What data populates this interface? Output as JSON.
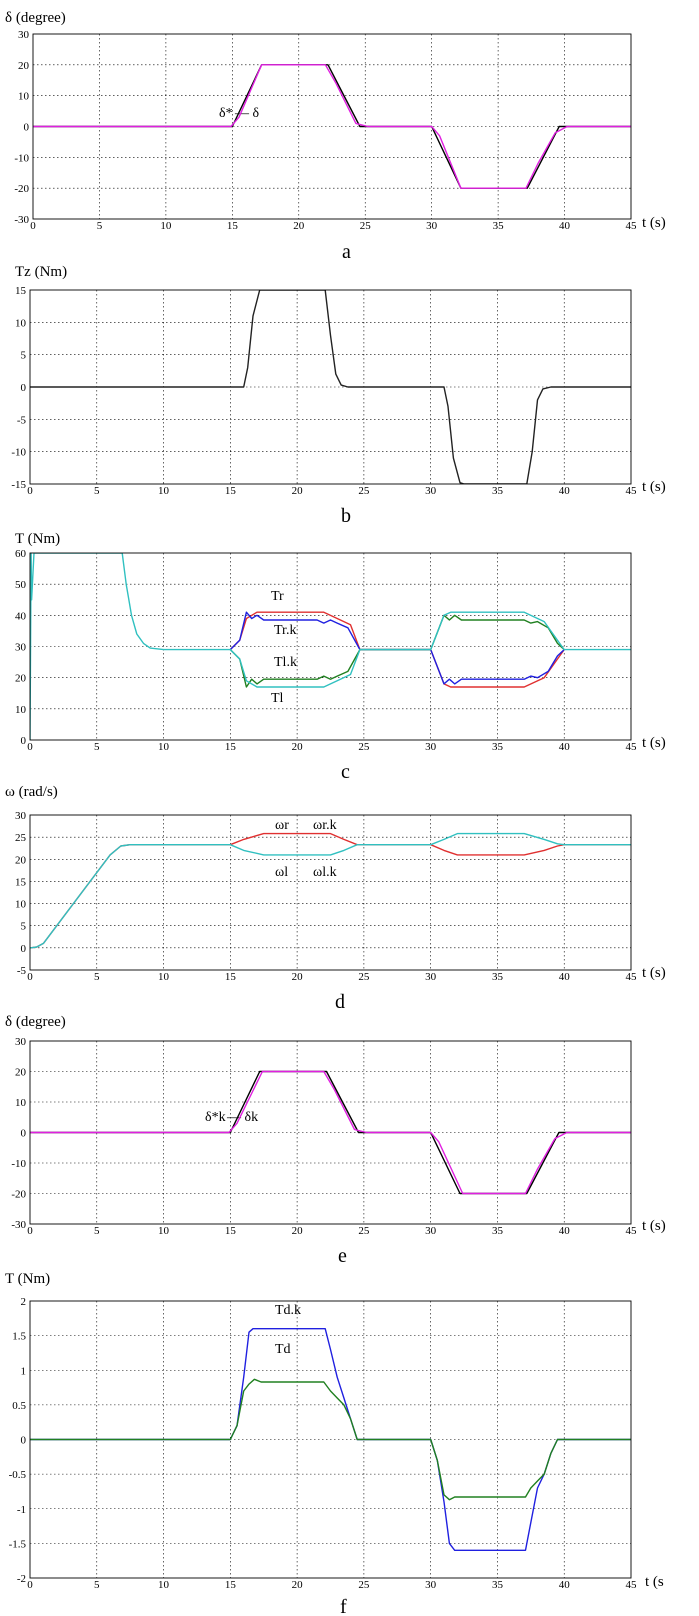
{
  "chart_data": [
    {
      "type": "line",
      "panel": "a",
      "ylabel": "δ (degree)",
      "xlabel": "t (s)",
      "caption": "a",
      "xlim": [
        0,
        45
      ],
      "ylim": [
        -30,
        30
      ],
      "xticks": [
        0,
        5,
        10,
        15,
        20,
        25,
        30,
        35,
        40,
        45
      ],
      "yticks": [
        -30,
        -20,
        -10,
        0,
        10,
        20,
        30
      ],
      "grid": true,
      "series": [
        {
          "key": "ref",
          "color": "#000000",
          "x": [
            0,
            15,
            17.2,
            22.2,
            24.6,
            30,
            32.2,
            37.2,
            39.6,
            45
          ],
          "y": [
            0,
            0,
            20,
            20,
            0,
            0,
            -20,
            -20,
            0,
            0
          ]
        },
        {
          "key": "act",
          "color": "#e020e0",
          "x": [
            0,
            14.9,
            15.5,
            17.2,
            22,
            22.8,
            24.3,
            25.2,
            30,
            30.6,
            32.2,
            37.1,
            38,
            39.3,
            40.2,
            45
          ],
          "y": [
            0,
            0,
            3,
            20,
            20,
            14,
            1,
            0,
            0,
            -3,
            -20,
            -20,
            -12,
            -2,
            0,
            0
          ]
        }
      ],
      "annotations": [
        {
          "text": "δ*",
          "after": " — δ"
        }
      ]
    },
    {
      "type": "line",
      "panel": "b",
      "ylabel": "Tz (Nm)",
      "xlabel": "t (s)",
      "caption": "b",
      "xlim": [
        0,
        45
      ],
      "ylim": [
        -15,
        15
      ],
      "xticks": [
        0,
        5,
        10,
        15,
        20,
        25,
        30,
        35,
        40,
        45
      ],
      "yticks": [
        -15,
        -10,
        -5,
        0,
        5,
        10,
        15
      ],
      "grid": true,
      "series": [
        {
          "key": "tz",
          "color": "#222222",
          "x": [
            0,
            16,
            16.3,
            16.7,
            17.2,
            17.5,
            22.1,
            22.5,
            22.9,
            23.3,
            23.8,
            31,
            31.3,
            31.7,
            32.2,
            32.5,
            37.2,
            37.6,
            38,
            38.4,
            39,
            45
          ],
          "y": [
            0,
            0,
            3,
            11,
            15,
            15,
            15,
            8,
            2,
            0.3,
            0,
            0,
            -3,
            -11,
            -14.8,
            -15,
            -15,
            -10,
            -2,
            -0.3,
            0,
            0
          ]
        }
      ]
    },
    {
      "type": "line",
      "panel": "c",
      "ylabel": "T (Nm)",
      "xlabel": "t (s)",
      "caption": "c",
      "xlim": [
        0,
        45
      ],
      "ylim": [
        0,
        60
      ],
      "xticks": [
        0,
        5,
        10,
        15,
        20,
        25,
        30,
        35,
        40,
        45
      ],
      "yticks": [
        0,
        10,
        20,
        30,
        40,
        50,
        60
      ],
      "grid": true,
      "series": [
        {
          "key": "tr",
          "color": "#e03030",
          "x": [
            15,
            15.7,
            16.2,
            17,
            22,
            23,
            24,
            24.7,
            30,
            31,
            31.5,
            37,
            38.5,
            39.5,
            40
          ],
          "y": [
            29,
            32,
            39,
            41,
            41,
            39,
            37,
            29,
            29,
            18,
            17,
            17,
            20,
            26,
            29
          ]
        },
        {
          "key": "trk",
          "color": "#2020e0",
          "x": [
            15,
            15.7,
            16.2,
            16.6,
            17,
            17.5,
            21.5,
            22,
            22.5,
            23,
            23.8,
            24.7,
            30,
            31,
            31.4,
            31.8,
            32.3,
            37,
            37.5,
            38,
            38.8,
            39.5,
            40
          ],
          "y": [
            29,
            32,
            41,
            39,
            40,
            38.5,
            38.5,
            37.5,
            38.5,
            37.5,
            36,
            29,
            29,
            18,
            19.5,
            18,
            19.5,
            19.5,
            20.5,
            20,
            22,
            27,
            29
          ]
        },
        {
          "key": "tlk",
          "color": "#208020",
          "x": [
            15,
            15.7,
            16.2,
            16.6,
            17,
            17.5,
            21.5,
            22,
            22.5,
            23,
            23.8,
            24.7,
            30,
            31,
            31.4,
            31.8,
            32.3,
            37,
            37.5,
            38,
            38.8,
            39.5,
            40
          ],
          "y": [
            29,
            26,
            17,
            19.5,
            18,
            19.5,
            19.5,
            20.5,
            19.5,
            20.5,
            22,
            29,
            29,
            40,
            38.5,
            40,
            38.5,
            38.5,
            37.5,
            38,
            36,
            31,
            29
          ]
        },
        {
          "key": "tl",
          "color": "#30c0c0",
          "x": [
            0,
            0.08,
            0.12,
            0.3,
            6.9,
            7.2,
            7.6,
            8,
            8.5,
            9,
            10,
            15,
            15.7,
            16.2,
            17,
            22,
            23,
            24,
            24.7,
            30,
            31,
            31.5,
            37,
            38.5,
            39.5,
            40,
            45
          ],
          "y": [
            0,
            60,
            45,
            60,
            60,
            50,
            40,
            34,
            31,
            29.5,
            29,
            29,
            26,
            19,
            17,
            17,
            19,
            21,
            29,
            29,
            40,
            41,
            41,
            38,
            32,
            29,
            29
          ]
        }
      ],
      "annotations": [
        "Tr",
        "Tr.k",
        "Tl.k",
        "Tl"
      ]
    },
    {
      "type": "line",
      "panel": "d",
      "ylabel": "ω (rad/s)",
      "xlabel": "t (s)",
      "caption": "d",
      "xlim": [
        0,
        45
      ],
      "ylim": [
        -5,
        30
      ],
      "xticks": [
        0,
        5,
        10,
        15,
        20,
        25,
        30,
        35,
        40,
        45
      ],
      "yticks": [
        -5,
        0,
        5,
        10,
        15,
        20,
        25,
        30
      ],
      "grid": true,
      "series": [
        {
          "key": "wr",
          "color": "#e03030",
          "x": [
            0,
            0.5,
            1,
            6,
            6.8,
            7.5,
            15,
            16,
            17.5,
            22.5,
            23.5,
            24.5,
            30,
            31,
            32,
            37,
            38.5,
            39.5,
            40,
            45
          ],
          "y": [
            0,
            0.2,
            1,
            21,
            23,
            23.3,
            23.3,
            24.5,
            25.8,
            25.8,
            24.5,
            23.3,
            23.3,
            22,
            21,
            21,
            22,
            23,
            23.3,
            23.3
          ]
        },
        {
          "key": "wl",
          "color": "#30c0c0",
          "x": [
            0,
            0.5,
            1,
            6,
            6.8,
            7.5,
            15,
            16,
            17.5,
            22.5,
            23.5,
            24.5,
            30,
            31,
            32,
            37,
            38.5,
            39.5,
            40,
            45
          ],
          "y": [
            0,
            0.2,
            1,
            21,
            23,
            23.3,
            23.3,
            22,
            21,
            21,
            22,
            23.3,
            23.3,
            24.5,
            25.8,
            25.8,
            24.5,
            23.5,
            23.3,
            23.3
          ]
        }
      ],
      "annotations": [
        "ωr",
        "ωr.k",
        "ωl",
        "ωl.k"
      ]
    },
    {
      "type": "line",
      "panel": "e",
      "ylabel": "δ (degree)",
      "xlabel": "t (s)",
      "caption": "e",
      "xlim": [
        0,
        45
      ],
      "ylim": [
        -30,
        30
      ],
      "xticks": [
        0,
        5,
        10,
        15,
        20,
        25,
        30,
        35,
        40,
        45
      ],
      "yticks": [
        -30,
        -20,
        -10,
        0,
        10,
        20,
        30
      ],
      "grid": true,
      "series": [
        {
          "key": "ref",
          "color": "#000000",
          "x": [
            0,
            15,
            17.2,
            22.2,
            24.6,
            30,
            32.2,
            37.2,
            39.6,
            45
          ],
          "y": [
            0,
            0,
            20,
            20,
            0,
            0,
            -20,
            -20,
            0,
            0
          ]
        },
        {
          "key": "act",
          "color": "#e020e0",
          "x": [
            0,
            14.9,
            15.5,
            17.4,
            22,
            22.8,
            24.3,
            25.2,
            30,
            30.6,
            32.4,
            37.1,
            38,
            39.3,
            40.2,
            45
          ],
          "y": [
            0,
            0,
            3,
            20,
            20,
            14,
            1,
            0,
            0,
            -3,
            -20,
            -20,
            -12,
            -2,
            0,
            0
          ]
        }
      ],
      "annotations": [
        {
          "text": "δ*k",
          "after": " — δk"
        }
      ]
    },
    {
      "type": "line",
      "panel": "f",
      "ylabel": "T (Nm)",
      "xlabel": "t (s",
      "caption": "f",
      "xlim": [
        0,
        45
      ],
      "ylim": [
        -2,
        2
      ],
      "xticks": [
        0,
        5,
        10,
        15,
        20,
        25,
        30,
        35,
        40,
        45
      ],
      "yticks": [
        -2,
        -1.5,
        -1,
        -0.5,
        0,
        0.5,
        1,
        1.5,
        2
      ],
      "grid": true,
      "series": [
        {
          "key": "tdk",
          "color": "#2020e0",
          "x": [
            0,
            15,
            15.5,
            16,
            16.4,
            16.7,
            22.1,
            22.5,
            23,
            23.5,
            24,
            24.5,
            30,
            30.5,
            31,
            31.4,
            31.8,
            37.1,
            37.5,
            38,
            38.5,
            39,
            39.5,
            40,
            45
          ],
          "y": [
            0,
            0,
            0.2,
            0.9,
            1.55,
            1.6,
            1.6,
            1.3,
            0.9,
            0.6,
            0.3,
            0,
            0,
            -0.3,
            -0.9,
            -1.5,
            -1.6,
            -1.6,
            -1.2,
            -0.7,
            -0.5,
            -0.2,
            0,
            0,
            0
          ]
        },
        {
          "key": "td",
          "color": "#208020",
          "x": [
            0,
            15,
            15.5,
            16,
            16.4,
            16.8,
            17.3,
            19,
            22,
            22.5,
            23,
            23.5,
            24,
            24.5,
            30,
            30.5,
            31,
            31.4,
            31.8,
            32.2,
            37.1,
            37.5,
            38,
            38.5,
            39,
            39.5,
            40,
            45
          ],
          "y": [
            0,
            0,
            0.2,
            0.7,
            0.8,
            0.87,
            0.83,
            0.83,
            0.83,
            0.7,
            0.6,
            0.5,
            0.3,
            0,
            0,
            -0.3,
            -0.8,
            -0.87,
            -0.83,
            -0.83,
            -0.83,
            -0.7,
            -0.6,
            -0.5,
            -0.2,
            0,
            0,
            0
          ]
        }
      ],
      "annotations": [
        "Td.k",
        "Td"
      ]
    }
  ]
}
